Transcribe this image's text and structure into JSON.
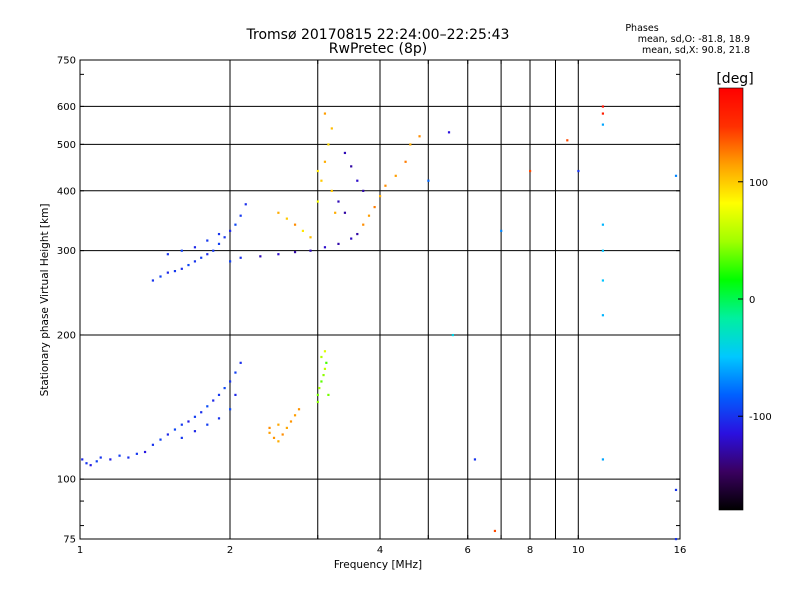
{
  "chart_data": {
    "type": "scatter",
    "title": "Tromsø 20170815 22:24:00–22:25:43",
    "subtitle": "RwPretec (8p)",
    "stats": {
      "heading": "Phases",
      "line_o": "mean, sd,O: -81.8, 18.9",
      "line_x": "mean, sd,X:  90.8, 21.8"
    },
    "xlabel": "Frequency [MHz]",
    "ylabel": "Stationary phase Virtual Height [km]",
    "x_scale": "log",
    "y_scale": "log",
    "xlim": [
      1,
      16
    ],
    "ylim": [
      75,
      750
    ],
    "x_ticks": [
      1,
      2,
      4,
      6,
      8,
      10,
      16
    ],
    "x_tick_labels": [
      "1",
      "2",
      "4",
      "6",
      "8",
      "10",
      "16"
    ],
    "x_gridlines": [
      2,
      3,
      4,
      5,
      6,
      7,
      8,
      9,
      10
    ],
    "y_ticks": [
      75,
      100,
      200,
      300,
      400,
      500,
      600,
      750
    ],
    "y_tick_labels": [
      "75",
      "100",
      "200",
      "300",
      "400",
      "500",
      "600",
      "750"
    ],
    "y_gridlines": [
      100,
      200,
      300,
      400,
      500,
      600
    ],
    "grid": true,
    "colorbar": {
      "label": "[deg]",
      "range": [
        -180,
        180
      ],
      "ticks": [
        100,
        0,
        -100
      ],
      "tick_labels": [
        "100",
        "0",
        "-100"
      ],
      "colors": [
        "#000000",
        "#3a0060",
        "#2a10e0",
        "#0060ff",
        "#00c8ff",
        "#00f0a0",
        "#00ff00",
        "#a0ff00",
        "#ffff00",
        "#ffa000",
        "#ff3000",
        "#ff0000"
      ]
    },
    "points": [
      [
        1.01,
        110,
        -105
      ],
      [
        1.03,
        108,
        -100
      ],
      [
        1.05,
        107,
        -110
      ],
      [
        1.08,
        109,
        -95
      ],
      [
        1.1,
        111,
        -100
      ],
      [
        1.15,
        110,
        -108
      ],
      [
        1.2,
        112,
        -96
      ],
      [
        1.25,
        111,
        -102
      ],
      [
        1.3,
        113,
        -98
      ],
      [
        1.35,
        114,
        -112
      ],
      [
        1.4,
        118,
        -100
      ],
      [
        1.45,
        121,
        -95
      ],
      [
        1.5,
        124,
        -105
      ],
      [
        1.55,
        127,
        -92
      ],
      [
        1.6,
        130,
        -98
      ],
      [
        1.65,
        132,
        -110
      ],
      [
        1.7,
        135,
        -96
      ],
      [
        1.75,
        138,
        -102
      ],
      [
        1.8,
        142,
        -90
      ],
      [
        1.85,
        146,
        -105
      ],
      [
        1.9,
        150,
        -98
      ],
      [
        1.95,
        155,
        -92
      ],
      [
        2.0,
        160,
        -100
      ],
      [
        2.05,
        167,
        -95
      ],
      [
        2.1,
        175,
        -102
      ],
      [
        1.6,
        122,
        -98
      ],
      [
        1.7,
        126,
        -105
      ],
      [
        1.8,
        130,
        -96
      ],
      [
        1.9,
        134,
        -100
      ],
      [
        2.0,
        140,
        -92
      ],
      [
        2.05,
        150,
        -105
      ],
      [
        2.4,
        125,
        115
      ],
      [
        2.45,
        122,
        118
      ],
      [
        2.5,
        120,
        110
      ],
      [
        2.55,
        124,
        120
      ],
      [
        2.6,
        128,
        112
      ],
      [
        2.65,
        132,
        118
      ],
      [
        2.7,
        136,
        115
      ],
      [
        2.4,
        128,
        120
      ],
      [
        2.5,
        130,
        112
      ],
      [
        2.75,
        140,
        118
      ],
      [
        3.0,
        150,
        40
      ],
      [
        3.02,
        155,
        50
      ],
      [
        3.05,
        160,
        35
      ],
      [
        3.08,
        165,
        45
      ],
      [
        3.1,
        170,
        60
      ],
      [
        3.12,
        175,
        30
      ],
      [
        3.05,
        180,
        55
      ],
      [
        3.1,
        185,
        70
      ],
      [
        3.15,
        150,
        40
      ],
      [
        3.0,
        145,
        45
      ],
      [
        1.4,
        260,
        -100
      ],
      [
        1.45,
        265,
        -95
      ],
      [
        1.5,
        270,
        -105
      ],
      [
        1.55,
        272,
        -98
      ],
      [
        1.6,
        275,
        -102
      ],
      [
        1.65,
        280,
        -92
      ],
      [
        1.7,
        285,
        -100
      ],
      [
        1.75,
        290,
        -96
      ],
      [
        1.8,
        295,
        -104
      ],
      [
        1.85,
        300,
        -98
      ],
      [
        1.9,
        310,
        -95
      ],
      [
        1.95,
        320,
        -100
      ],
      [
        2.0,
        330,
        -105
      ],
      [
        2.05,
        340,
        -92
      ],
      [
        2.1,
        355,
        -98
      ],
      [
        2.15,
        375,
        -102
      ],
      [
        1.5,
        295,
        -100
      ],
      [
        1.6,
        300,
        -95
      ],
      [
        1.7,
        305,
        -105
      ],
      [
        1.8,
        315,
        -98
      ],
      [
        1.9,
        325,
        -100
      ],
      [
        2.0,
        285,
        -95
      ],
      [
        2.1,
        290,
        -102
      ],
      [
        2.3,
        292,
        -125
      ],
      [
        2.5,
        295,
        -120
      ],
      [
        2.7,
        298,
        -130
      ],
      [
        2.9,
        300,
        -125
      ],
      [
        3.1,
        305,
        -120
      ],
      [
        3.3,
        310,
        -128
      ],
      [
        3.5,
        318,
        -122
      ],
      [
        3.6,
        325,
        -130
      ],
      [
        2.5,
        360,
        110
      ],
      [
        2.6,
        350,
        100
      ],
      [
        2.7,
        340,
        120
      ],
      [
        2.8,
        330,
        90
      ],
      [
        2.9,
        320,
        105
      ],
      [
        3.0,
        380,
        80
      ],
      [
        3.05,
        420,
        100
      ],
      [
        3.1,
        460,
        110
      ],
      [
        3.15,
        500,
        95
      ],
      [
        3.2,
        540,
        105
      ],
      [
        3.1,
        580,
        115
      ],
      [
        3.0,
        440,
        90
      ],
      [
        3.2,
        400,
        100
      ],
      [
        3.25,
        360,
        110
      ],
      [
        3.4,
        480,
        -125
      ],
      [
        3.5,
        450,
        -130
      ],
      [
        3.6,
        420,
        -120
      ],
      [
        3.7,
        400,
        -128
      ],
      [
        3.3,
        380,
        -125
      ],
      [
        3.4,
        360,
        -130
      ],
      [
        3.7,
        340,
        120
      ],
      [
        3.8,
        355,
        115
      ],
      [
        3.9,
        370,
        125
      ],
      [
        4.0,
        390,
        110
      ],
      [
        4.1,
        410,
        120
      ],
      [
        4.3,
        430,
        115
      ],
      [
        4.5,
        460,
        125
      ],
      [
        4.6,
        500,
        110
      ],
      [
        4.8,
        520,
        120
      ],
      [
        5.0,
        420,
        -80
      ],
      [
        5.5,
        530,
        -115
      ],
      [
        6.2,
        110,
        -100
      ],
      [
        7.0,
        330,
        -70
      ],
      [
        8.0,
        440,
        140
      ],
      [
        9.5,
        510,
        140
      ],
      [
        10.0,
        440,
        -100
      ],
      [
        11.2,
        600,
        170
      ],
      [
        11.2,
        580,
        160
      ],
      [
        11.2,
        550,
        -60
      ],
      [
        11.2,
        340,
        -55
      ],
      [
        11.2,
        300,
        -50
      ],
      [
        11.2,
        260,
        -50
      ],
      [
        11.2,
        220,
        -55
      ],
      [
        11.2,
        110,
        -60
      ],
      [
        15.7,
        430,
        -70
      ],
      [
        15.7,
        95,
        -100
      ],
      [
        15.7,
        75,
        -100
      ],
      [
        6.8,
        78,
        140
      ],
      [
        5.6,
        200,
        -40
      ]
    ]
  }
}
